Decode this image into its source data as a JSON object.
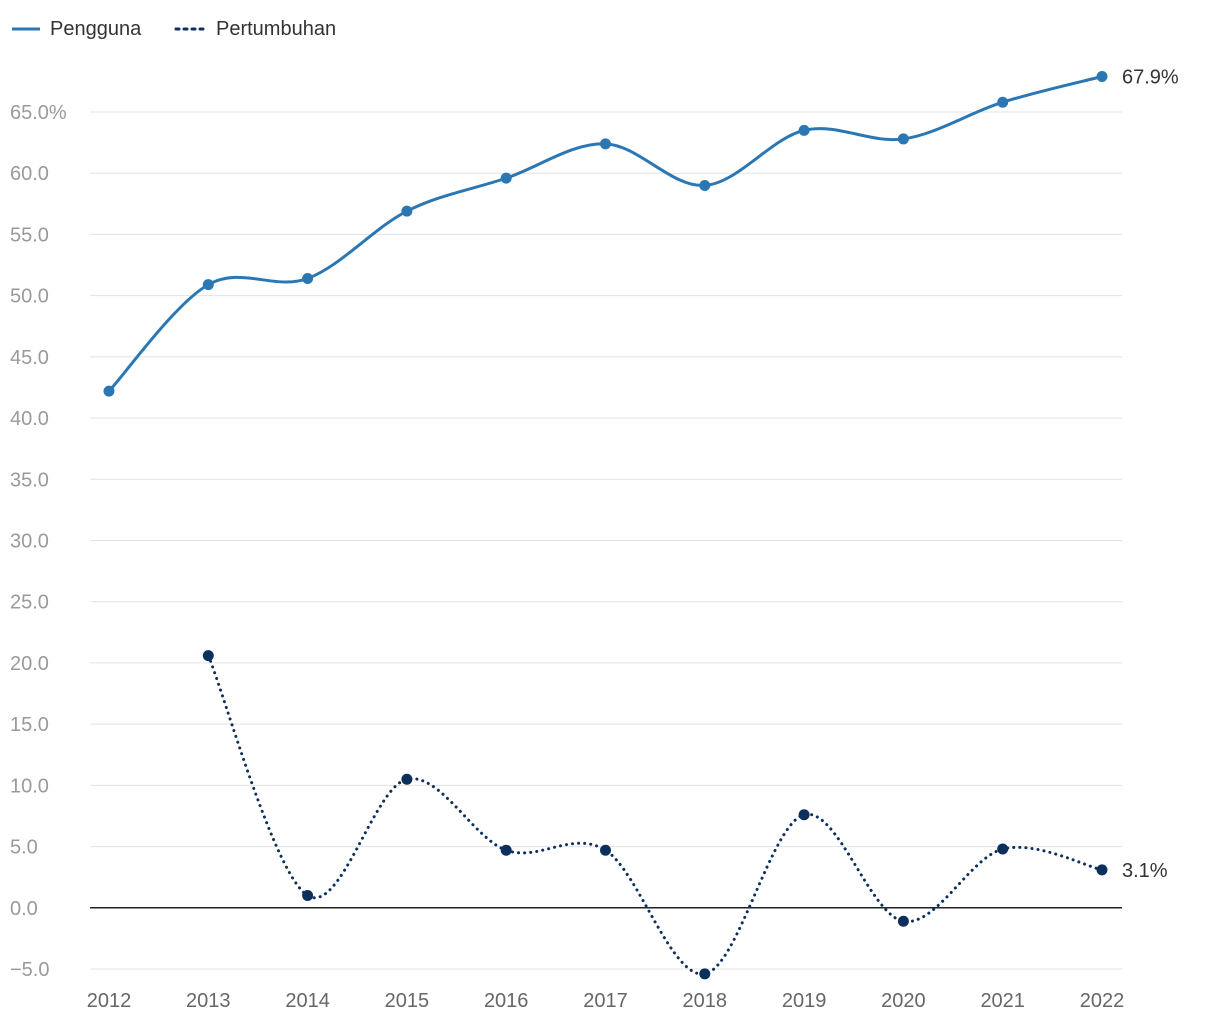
{
  "chart_data": {
    "type": "line",
    "x": [
      "2012",
      "2013",
      "2014",
      "2015",
      "2016",
      "2017",
      "2018",
      "2019",
      "2020",
      "2021",
      "2022"
    ],
    "series": [
      {
        "name": "Pengguna",
        "style": "solid",
        "color": "#2a77b4",
        "values": [
          42.2,
          50.9,
          51.4,
          56.9,
          59.6,
          62.4,
          59.0,
          63.5,
          62.8,
          65.8,
          67.9
        ],
        "end_label": "67.9%"
      },
      {
        "name": "Pertumbuhan",
        "style": "dotted",
        "color": "#0d2f5c",
        "values": [
          null,
          20.6,
          1.0,
          10.5,
          4.7,
          4.7,
          -5.4,
          7.6,
          -1.1,
          4.8,
          3.1
        ],
        "end_label": "3.1%"
      }
    ],
    "y_ticks": [
      "65.0%",
      "60.0",
      "55.0",
      "50.0",
      "45.0",
      "40.0",
      "35.0",
      "30.0",
      "25.0",
      "20.0",
      "15.0",
      "10.0",
      "5.0",
      "0.0",
      "−5.0"
    ],
    "y_tick_values": [
      65,
      60,
      55,
      50,
      45,
      40,
      35,
      30,
      25,
      20,
      15,
      10,
      5,
      0,
      -5
    ],
    "ylim": [
      -5,
      65
    ],
    "grid": true,
    "zero_line": true,
    "legend_position": "top-left"
  }
}
